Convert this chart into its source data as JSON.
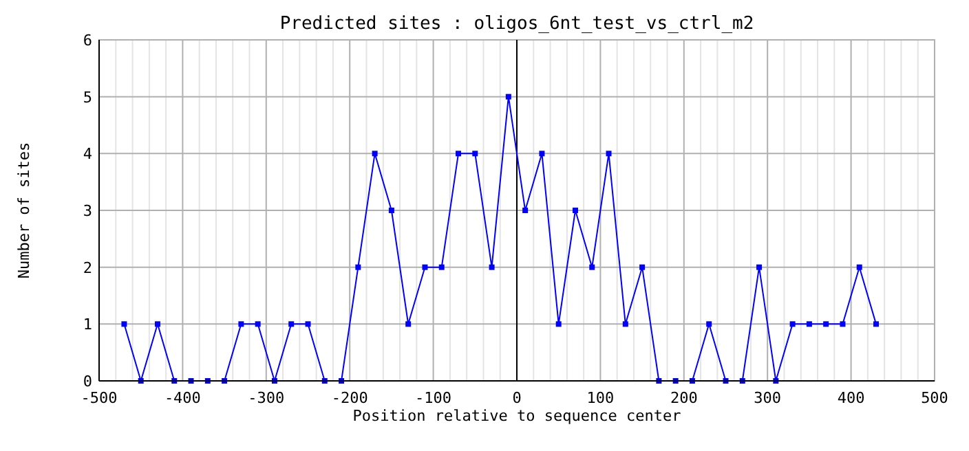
{
  "chart_data": {
    "type": "line",
    "title": "Predicted sites : oligos_6nt_test_vs_ctrl_m2",
    "xlabel": "Position relative to sequence center",
    "ylabel": "Number of sites",
    "x": [
      -470,
      -450,
      -430,
      -410,
      -390,
      -370,
      -350,
      -330,
      -310,
      -290,
      -270,
      -250,
      -230,
      -210,
      -190,
      -170,
      -150,
      -130,
      -110,
      -90,
      -70,
      -50,
      -30,
      -10,
      10,
      30,
      50,
      70,
      90,
      110,
      130,
      150,
      170,
      190,
      210,
      230,
      250,
      270,
      290,
      310,
      330,
      350,
      370,
      390,
      410,
      430
    ],
    "series": [
      {
        "color": "#0000ff",
        "values": [
          1,
          0,
          1,
          0,
          0,
          0,
          0,
          1,
          1,
          0,
          1,
          1,
          0,
          0,
          2,
          4,
          3,
          1,
          2,
          2,
          4,
          4,
          2,
          5,
          3,
          4,
          1,
          3,
          2,
          4,
          1,
          2,
          0,
          0,
          0,
          1,
          0,
          0,
          2,
          0,
          1,
          1,
          1,
          1,
          2,
          1
        ]
      }
    ],
    "xlim": [
      -500,
      500
    ],
    "xticks": [
      -500,
      {
        "value": -480,
        "label": null
      },
      {
        "value": -460,
        "label": null
      },
      {
        "value": -440,
        "label": null
      },
      {
        "value": -420,
        "label": null
      },
      -400,
      {
        "value": -380,
        "label": null
      },
      {
        "value": -360,
        "label": null
      },
      {
        "value": -340,
        "label": null
      },
      {
        "value": -320,
        "label": null
      },
      -300,
      {
        "value": -280,
        "label": null
      },
      {
        "value": -260,
        "label": null
      },
      {
        "value": -240,
        "label": null
      },
      {
        "value": -220,
        "label": null
      },
      -200,
      {
        "value": -180,
        "label": null
      },
      {
        "value": -160,
        "label": null
      },
      {
        "value": -140,
        "label": null
      },
      {
        "value": -120,
        "label": null
      },
      -100,
      {
        "value": -80,
        "label": null
      },
      {
        "value": -60,
        "label": null
      },
      {
        "value": -40,
        "label": null
      },
      {
        "value": -20,
        "label": null
      },
      0,
      {
        "value": 20,
        "label": null
      },
      {
        "value": 40,
        "label": null
      },
      {
        "value": 60,
        "label": null
      },
      {
        "value": 80,
        "label": null
      },
      100,
      {
        "value": 120,
        "label": null
      },
      {
        "value": 140,
        "label": null
      },
      {
        "value": 160,
        "label": null
      },
      {
        "value": 180,
        "label": null
      },
      200,
      {
        "value": 220,
        "label": null
      },
      {
        "value": 240,
        "label": null
      },
      {
        "value": 260,
        "label": null
      },
      {
        "value": 280,
        "label": null
      },
      300,
      {
        "value": 320,
        "label": null
      },
      {
        "value": 340,
        "label": null
      },
      {
        "value": 360,
        "label": null
      },
      {
        "value": 380,
        "label": null
      },
      400,
      {
        "value": 420,
        "label": null
      },
      {
        "value": 440,
        "label": null
      },
      {
        "value": 460,
        "label": null
      },
      {
        "value": 480,
        "label": null
      },
      500
    ],
    "ylim": [
      0,
      6
    ],
    "yticks": [
      0,
      1,
      2,
      3,
      4,
      5,
      6
    ],
    "grid": true,
    "marker": "square",
    "line_style": "solid",
    "ref_lines": [
      {
        "axis": "x",
        "value": 0,
        "color": "#000000"
      }
    ]
  }
}
